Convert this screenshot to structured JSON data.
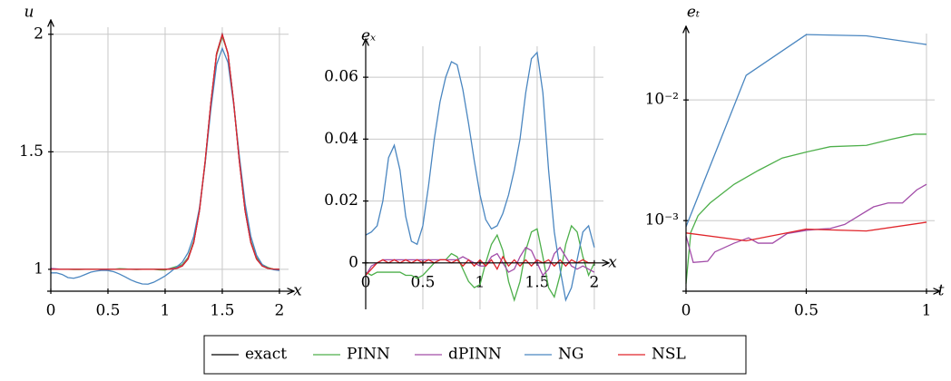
{
  "chart_data": [
    {
      "type": "line",
      "y_label": "u",
      "x_label": "x",
      "x": [
        0,
        0.05,
        0.1,
        0.15,
        0.2,
        0.25,
        0.3,
        0.35,
        0.4,
        0.45,
        0.5,
        0.55,
        0.6,
        0.65,
        0.7,
        0.75,
        0.8,
        0.85,
        0.9,
        0.95,
        1,
        1.05,
        1.1,
        1.15,
        1.2,
        1.25,
        1.3,
        1.35,
        1.4,
        1.45,
        1.5,
        1.55,
        1.6,
        1.65,
        1.7,
        1.75,
        1.8,
        1.85,
        1.9,
        1.95,
        2
      ],
      "series": [
        {
          "name": "exact",
          "color": "#000000",
          "values": [
            1,
            1,
            1,
            1,
            1,
            1,
            1,
            1,
            1,
            1,
            1,
            1,
            1,
            1,
            1,
            1,
            1,
            1,
            1,
            1,
            1,
            1.001,
            1.004,
            1.014,
            1.044,
            1.114,
            1.249,
            1.458,
            1.707,
            1.917,
            2,
            1.917,
            1.707,
            1.458,
            1.249,
            1.114,
            1.044,
            1.014,
            1.004,
            1.001,
            1
          ]
        },
        {
          "name": "PINN",
          "color": "#4daf4a",
          "values": [
            1.002,
            1.001,
            1,
            1,
            0.999,
            0.999,
            1,
            1.001,
            1.001,
            1,
            0.999,
            1,
            1.003,
            1.002,
            1,
            0.999,
            1,
            1.001,
            1,
            0.998,
            0.997,
            1.005,
            1.012,
            1.02,
            1.05,
            1.12,
            1.25,
            1.45,
            1.7,
            1.91,
            1.99,
            1.92,
            1.71,
            1.47,
            1.26,
            1.12,
            1.05,
            1.02,
            1.008,
            1,
            0.998
          ]
        },
        {
          "name": "dPINN",
          "color": "#a24ca8",
          "values": [
            1.004,
            1.002,
            1,
            1,
            1,
            1,
            1,
            1,
            1,
            1,
            1,
            1,
            1,
            1,
            1,
            1,
            1,
            1,
            1,
            1,
            1,
            1.003,
            1.006,
            1.016,
            1.046,
            1.114,
            1.248,
            1.455,
            1.705,
            1.915,
            1.998,
            1.918,
            1.71,
            1.46,
            1.25,
            1.115,
            1.045,
            1.015,
            1.005,
            1,
            0.998
          ]
        },
        {
          "name": "NG",
          "color": "#4a86c0",
          "values": [
            0.985,
            0.985,
            0.978,
            0.965,
            0.962,
            0.968,
            0.978,
            0.988,
            0.993,
            0.996,
            0.995,
            0.99,
            0.98,
            0.968,
            0.955,
            0.945,
            0.938,
            0.937,
            0.945,
            0.958,
            0.972,
            0.99,
            1.01,
            1.03,
            1.07,
            1.14,
            1.26,
            1.45,
            1.68,
            1.87,
            1.94,
            1.88,
            1.7,
            1.48,
            1.28,
            1.14,
            1.06,
            1.02,
            1.005,
            0.998,
            0.995
          ]
        },
        {
          "name": "NSL",
          "color": "#e0242a",
          "values": [
            1,
            1,
            1,
            1,
            1,
            1,
            1,
            1,
            1,
            1,
            1,
            1,
            1,
            1,
            1,
            1,
            1,
            1,
            1,
            1,
            1,
            1.001,
            1.004,
            1.014,
            1.044,
            1.114,
            1.249,
            1.458,
            1.707,
            1.917,
            1.998,
            1.917,
            1.707,
            1.458,
            1.249,
            1.114,
            1.044,
            1.014,
            1.004,
            1.001,
            1
          ]
        }
      ],
      "xlim": [
        0,
        2.08
      ],
      "ylim": [
        0.907,
        2.03
      ],
      "xticks": [
        0,
        0.5,
        1,
        1.5,
        2
      ],
      "yticks": [
        1,
        1.5,
        2
      ],
      "grid": true
    },
    {
      "type": "line",
      "y_label": "eₓ",
      "x_label": "x",
      "x": [
        0,
        0.05,
        0.1,
        0.15,
        0.2,
        0.25,
        0.3,
        0.35,
        0.4,
        0.45,
        0.5,
        0.55,
        0.6,
        0.65,
        0.7,
        0.75,
        0.8,
        0.85,
        0.9,
        0.95,
        1,
        1.05,
        1.1,
        1.15,
        1.2,
        1.25,
        1.3,
        1.35,
        1.4,
        1.45,
        1.5,
        1.55,
        1.6,
        1.65,
        1.7,
        1.75,
        1.8,
        1.85,
        1.9,
        1.95,
        2
      ],
      "series": [
        {
          "color": "#4daf4a",
          "values": [
            -0.003,
            -0.004,
            -0.003,
            -0.003,
            -0.003,
            -0.003,
            -0.003,
            -0.004,
            -0.004,
            -0.005,
            -0.004,
            -0.002,
            0,
            0.001,
            0.001,
            0.003,
            0.002,
            -0.002,
            -0.006,
            -0.008,
            -0.007,
            0,
            0.006,
            0.009,
            0.004,
            -0.006,
            -0.012,
            -0.006,
            0.004,
            0.01,
            0.011,
            0.002,
            -0.008,
            -0.011,
            -0.004,
            0.006,
            0.012,
            0.01,
            0.002,
            -0.004,
            0
          ]
        },
        {
          "color": "#a24ca8",
          "values": [
            -0.004,
            -0.001,
            0,
            0.001,
            0.001,
            0.001,
            0.001,
            0.001,
            0.001,
            0.001,
            0.001,
            0.001,
            0.001,
            0.001,
            0.001,
            0.001,
            0.001,
            0.002,
            0.001,
            0,
            -0.001,
            -0.001,
            0.002,
            0.003,
            0,
            -0.003,
            -0.002,
            0.002,
            0.005,
            0.004,
            0,
            -0.004,
            -0.002,
            0.003,
            0.005,
            0.002,
            -0.001,
            -0.002,
            -0.001,
            -0.002,
            -0.003
          ]
        },
        {
          "color": "#4a86c0",
          "values": [
            0.009,
            0.01,
            0.012,
            0.02,
            0.034,
            0.038,
            0.03,
            0.015,
            0.007,
            0.006,
            0.012,
            0.025,
            0.04,
            0.052,
            0.06,
            0.065,
            0.064,
            0.056,
            0.045,
            0.033,
            0.022,
            0.014,
            0.011,
            0.012,
            0.016,
            0.022,
            0.03,
            0.04,
            0.055,
            0.066,
            0.068,
            0.055,
            0.03,
            0.01,
            -0.002,
            -0.012,
            -0.008,
            0.001,
            0.01,
            0.012,
            0.005
          ]
        },
        {
          "color": "#e0242a",
          "values": [
            -0.004,
            -0.002,
            0,
            0.001,
            0,
            0.001,
            0,
            0.001,
            0,
            0.001,
            0,
            0.001,
            0,
            0.001,
            0.001,
            0,
            0.001,
            -0.001,
            0.001,
            -0.001,
            0.001,
            -0.001,
            0.001,
            -0.002,
            0.002,
            -0.001,
            0.001,
            -0.001,
            0.001,
            -0.001,
            0.001,
            0,
            0.001,
            -0.001,
            0.001,
            -0.001,
            0.001,
            0,
            0.001,
            0,
            0
          ]
        }
      ],
      "xlim": [
        0,
        2.08
      ],
      "ylim": [
        -0.015,
        0.07
      ],
      "xticks": [
        0,
        0.5,
        1,
        1.5,
        2
      ],
      "yticks": [
        0,
        0.02,
        0.04,
        0.06
      ],
      "grid": true
    },
    {
      "type": "line",
      "y_label": "eₜ",
      "x_label": "t",
      "log_y": true,
      "series": [
        {
          "color": "#4daf4a",
          "x": [
            0,
            0.02,
            0.05,
            0.1,
            0.2,
            0.3,
            0.4,
            0.5,
            0.6,
            0.75,
            0.85,
            0.95,
            1
          ],
          "values": [
            0.0003,
            0.0008,
            0.0011,
            0.0014,
            0.002,
            0.0026,
            0.0033,
            0.0037,
            0.0041,
            0.0042,
            0.0047,
            0.0052,
            0.0052
          ]
        },
        {
          "color": "#a24ca8",
          "x": [
            0,
            0.03,
            0.09,
            0.12,
            0.2,
            0.26,
            0.3,
            0.36,
            0.42,
            0.5,
            0.56,
            0.6,
            0.66,
            0.72,
            0.78,
            0.84,
            0.9,
            0.96,
            1
          ],
          "values": [
            0.00075,
            0.00045,
            0.00046,
            0.00055,
            0.00065,
            0.00072,
            0.00065,
            0.00065,
            0.00078,
            0.00083,
            0.00085,
            0.00086,
            0.00093,
            0.0011,
            0.0013,
            0.0014,
            0.0014,
            0.0018,
            0.002
          ]
        },
        {
          "color": "#4a86c0",
          "x": [
            0,
            0.25,
            0.5,
            0.75,
            1
          ],
          "values": [
            0.00089,
            0.016,
            0.0348,
            0.034,
            0.0288
          ]
        },
        {
          "color": "#e0242a",
          "x": [
            0,
            0.25,
            0.5,
            0.75,
            1
          ],
          "values": [
            0.00079,
            0.00068,
            0.00085,
            0.00082,
            0.00097
          ]
        }
      ],
      "xlim": [
        0,
        1.034
      ],
      "ylim": [
        0.00026,
        0.0355
      ],
      "xticks": [
        0,
        0.5,
        1
      ],
      "yticks": [
        {
          "value": 0.001,
          "label": "10⁻³"
        },
        {
          "value": 0.01,
          "label": "10⁻²"
        }
      ],
      "grid": true
    }
  ]
}
